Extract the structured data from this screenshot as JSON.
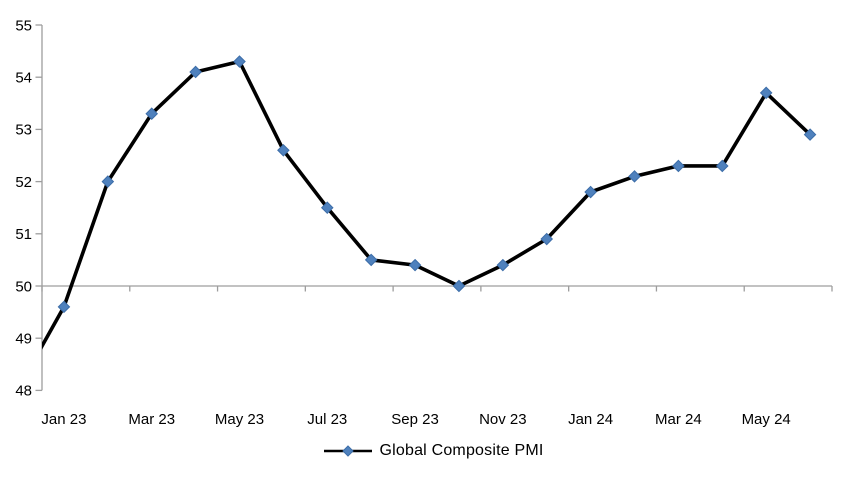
{
  "chart_data": {
    "type": "line",
    "title": "",
    "categories": [
      "Dec 22",
      "Jan 23",
      "Feb 23",
      "Mar 23",
      "Apr 23",
      "May 23",
      "Jun 23",
      "Jul 23",
      "Aug 23",
      "Sep 23",
      "Oct 23",
      "Nov 23",
      "Dec 23",
      "Jan 24",
      "Feb 24",
      "Mar 24",
      "Apr 24",
      "May 24",
      "Jun 24"
    ],
    "series": [
      {
        "name": "Global Composite PMI",
        "values": [
          48.1,
          49.6,
          52.0,
          53.3,
          54.1,
          54.3,
          52.6,
          51.5,
          50.5,
          50.4,
          50.0,
          50.4,
          50.9,
          51.8,
          52.1,
          52.3,
          52.3,
          53.7,
          52.9
        ]
      }
    ],
    "x_tick_labels": [
      "Jan 23",
      "Mar 23",
      "May 23",
      "Jul 23",
      "Sep 23",
      "Nov 23",
      "Jan 24",
      "Mar 24",
      "May 24"
    ],
    "y_ticks": [
      48,
      49,
      50,
      51,
      52,
      53,
      54,
      55
    ],
    "ylim": [
      48,
      55
    ],
    "baseline_value": 50,
    "grid": "off",
    "legend_position": "bottom",
    "marker_shape": "diamond",
    "colors": {
      "series_line": "#000000",
      "marker_fill": "#4f81bd",
      "marker_border": "#3c6da8",
      "axis": "#9d9d9d",
      "text": "#000000"
    }
  },
  "legend": {
    "label": "Global Composite PMI"
  }
}
